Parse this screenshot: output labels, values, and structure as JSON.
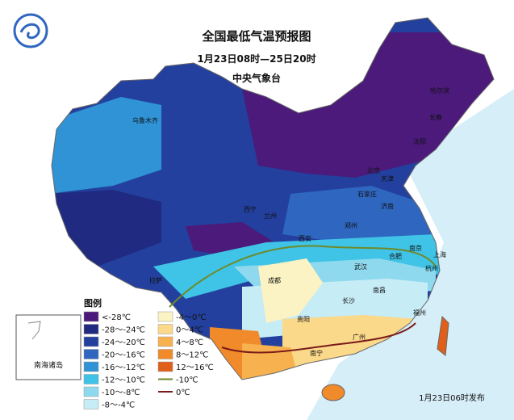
{
  "header": {
    "title": "全国最低气温预报图",
    "subtitle": "1月23日08时—25日20时",
    "issuer": "中央气象台"
  },
  "legend": {
    "title": "图例",
    "items": [
      {
        "label": "<-28℃",
        "color": "#4b1a7a",
        "kind": "fill"
      },
      {
        "label": "-28～-24℃",
        "color": "#1f2a80",
        "kind": "fill"
      },
      {
        "label": "-24～-20℃",
        "color": "#23409e",
        "kind": "fill"
      },
      {
        "label": "-20～-16℃",
        "color": "#2f66c0",
        "kind": "fill"
      },
      {
        "label": "-16～-12℃",
        "color": "#2f93d6",
        "kind": "fill"
      },
      {
        "label": "-12～-10℃",
        "color": "#3fc3e6",
        "kind": "fill"
      },
      {
        "label": "-10～-8℃",
        "color": "#8fd9ee",
        "kind": "fill"
      },
      {
        "label": "-8～-4℃",
        "color": "#c6ecf6",
        "kind": "fill"
      },
      {
        "label": "-4～0℃",
        "color": "#fbf3c4",
        "kind": "fill"
      },
      {
        "label": "0～4℃",
        "color": "#fbd98a",
        "kind": "fill"
      },
      {
        "label": "4～8℃",
        "color": "#f7b14e",
        "kind": "fill"
      },
      {
        "label": "8～12℃",
        "color": "#f08a2a",
        "kind": "fill"
      },
      {
        "label": "12～16℃",
        "color": "#e0601a",
        "kind": "fill"
      },
      {
        "label": "-10℃",
        "color": "#6e8a2a",
        "kind": "line"
      },
      {
        "label": "0℃",
        "color": "#7a1a1a",
        "kind": "line"
      }
    ]
  },
  "inset": {
    "label": "南海诸岛"
  },
  "cities": [
    "北京",
    "天津",
    "石家庄",
    "济南",
    "郑州",
    "西安",
    "成都",
    "长沙",
    "贵阳",
    "南宁",
    "南昌",
    "武汉",
    "合肥",
    "南京",
    "上海",
    "杭州",
    "福州",
    "广州",
    "拉萨",
    "西宁",
    "兰州",
    "乌鲁木齐",
    "哈尔滨",
    "长春",
    "沈阳"
  ],
  "footer": "1月23日06时发布"
}
